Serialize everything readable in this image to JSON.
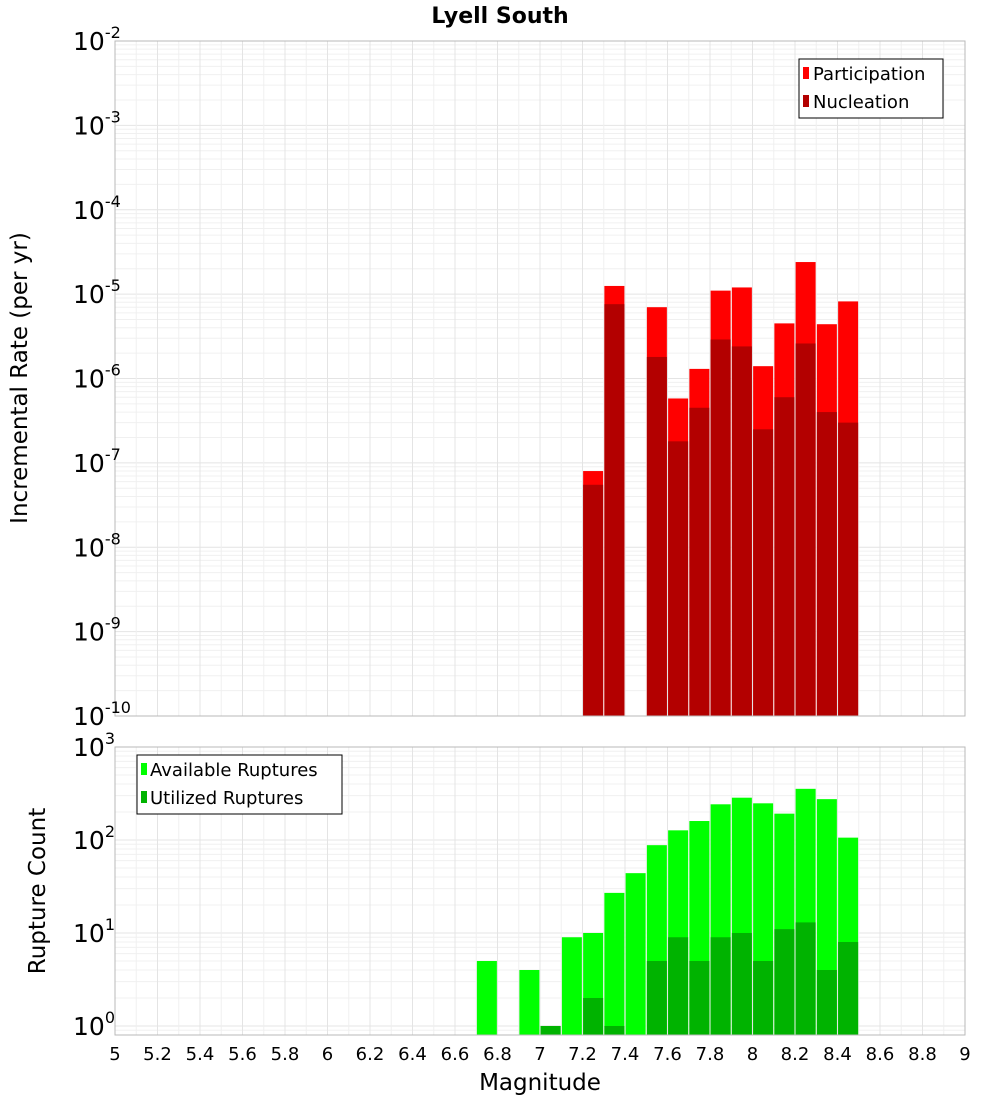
{
  "chart_data": [
    {
      "type": "bar",
      "title": "Lyell South",
      "xlabel": "",
      "ylabel": "Incremental Rate (per yr)",
      "y_scale": "log",
      "ylim": [
        1e-10,
        0.01
      ],
      "xlim": [
        5,
        9
      ],
      "ytick_exponents": [
        "-2",
        "-3",
        "-4",
        "-5",
        "-6",
        "-7",
        "-8",
        "-9",
        "-10"
      ],
      "legend_position": "top-right",
      "bin_centers": [
        7.25,
        7.35,
        7.55,
        7.65,
        7.75,
        7.85,
        7.95,
        8.05,
        8.15,
        8.25,
        8.35,
        8.45
      ],
      "series": [
        {
          "name": "Participation",
          "color": "#ff0000",
          "values": [
            8e-08,
            1.25e-05,
            7e-06,
            5.8e-07,
            1.3e-06,
            1.1e-05,
            1.2e-05,
            1.4e-06,
            4.5e-06,
            2.4e-05,
            4.4e-06,
            8.2e-06
          ]
        },
        {
          "name": "Nucleation",
          "color": "#b30000",
          "values": [
            5.5e-08,
            7.6e-06,
            1.8e-06,
            1.8e-07,
            4.5e-07,
            2.9e-06,
            2.4e-06,
            2.5e-07,
            6e-07,
            2.6e-06,
            4e-07,
            3e-07
          ]
        }
      ]
    },
    {
      "type": "bar",
      "title": "",
      "xlabel": "Magnitude",
      "ylabel": "Rupture Count",
      "y_scale": "log",
      "ylim": [
        0.8,
        1000
      ],
      "xlim": [
        5,
        9
      ],
      "ytick_exponents": [
        "3",
        "2",
        "1",
        "0"
      ],
      "legend_position": "top-left",
      "x_ticks": [
        "5",
        "5.2",
        "5.4",
        "5.6",
        "5.8",
        "6",
        "6.2",
        "6.4",
        "6.6",
        "6.8",
        "7",
        "7.2",
        "7.4",
        "7.6",
        "7.8",
        "8",
        "8.2",
        "8.4",
        "8.6",
        "8.8",
        "9"
      ],
      "bin_centers": [
        6.75,
        6.95,
        7.05,
        7.15,
        7.25,
        7.35,
        7.45,
        7.55,
        7.65,
        7.75,
        7.85,
        7.95,
        8.05,
        8.15,
        8.25,
        8.35,
        8.45
      ],
      "series": [
        {
          "name": "Available Ruptures",
          "color": "#00ff00",
          "values": [
            5,
            4,
            1,
            9,
            10,
            27,
            44,
            88,
            127,
            160,
            242,
            285,
            248,
            192,
            355,
            275,
            106
          ]
        },
        {
          "name": "Utilized Ruptures",
          "color": "#00b300",
          "values": [
            0,
            0,
            1,
            0,
            2,
            1,
            0,
            5,
            9,
            5,
            9,
            10,
            5,
            11,
            13,
            4,
            8
          ]
        }
      ]
    }
  ]
}
